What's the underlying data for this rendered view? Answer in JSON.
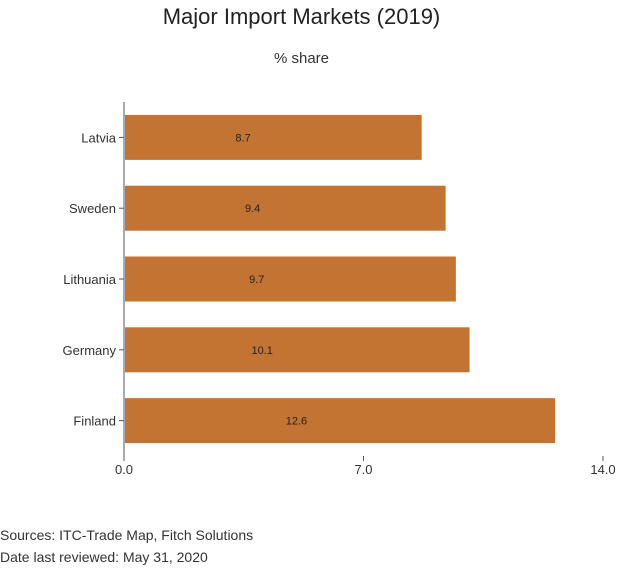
{
  "chart_data": {
    "type": "bar",
    "orientation": "horizontal",
    "title": "Major Import Markets (2019)",
    "subtitle": "% share",
    "categories": [
      "Latvia",
      "Sweden",
      "Lithuania",
      "Germany",
      "Finland"
    ],
    "values": [
      8.7,
      9.4,
      9.7,
      10.1,
      12.6
    ],
    "data_labels": [
      "8.7",
      "9.4",
      "9.7",
      "10.1",
      "12.6"
    ],
    "xlim": [
      0,
      14
    ],
    "x_ticks": [
      0,
      7,
      14
    ],
    "x_tick_labels": [
      "0.0",
      "7.0",
      "14.0"
    ],
    "bar_color": "#c47432",
    "grid": false,
    "legend": "none"
  },
  "footer": {
    "sources": "Sources: ITC-Trade Map, Fitch Solutions",
    "reviewed": "Date last reviewed: May 31, 2020"
  }
}
